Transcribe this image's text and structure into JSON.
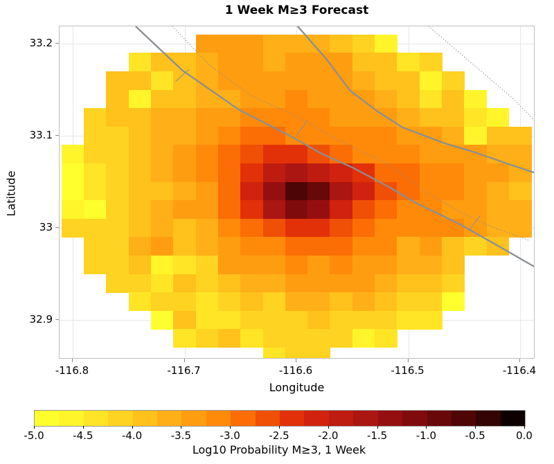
{
  "title": "1 Week M≥3 Forecast",
  "axes": {
    "xlabel": "Longitude",
    "ylabel": "Latitude",
    "xticks": {
      "labels": [
        "-116.8",
        "-116.7",
        "-116.6",
        "-116.5",
        "-116.4"
      ],
      "values": [
        -116.8,
        -116.7,
        -116.6,
        -116.5,
        -116.4
      ]
    },
    "yticks": {
      "labels": [
        "33.2",
        "33.1",
        "33",
        "32.9"
      ],
      "values": [
        33.2,
        33.1,
        33.0,
        32.9
      ]
    }
  },
  "colorbar": {
    "label": "Log10 Probability M≥3, 1 Week",
    "tick_labels": [
      "-5.0",
      "-4.5",
      "-4.0",
      "-3.5",
      "-3.0",
      "-2.5",
      "-2.0",
      "-1.5",
      "-1.0",
      "-0.5",
      "0.0"
    ],
    "vmin": -5.0,
    "vmax": 0.0,
    "n_blocks": 20,
    "palette": [
      "#FFFF2E",
      "#FFF52A",
      "#FFE526",
      "#FFD321",
      "#FFC11C",
      "#FFAF17",
      "#FF9D11",
      "#FF8A0A",
      "#FB6D05",
      "#F04F06",
      "#E23109",
      "#D0220E",
      "#BE1B11",
      "#AB1512",
      "#960F10",
      "#800B0D",
      "#680809",
      "#4E0506",
      "#340303",
      "#0E0001"
    ]
  },
  "fault_line_color": "#8a8f94",
  "chart_data": {
    "type": "heatmap",
    "title": "1 Week M≥3 Forecast",
    "xlabel": "Longitude",
    "ylabel": "Latitude",
    "value_label": "Log10 Probability M≥3, 1 Week",
    "xlim": [
      -116.815,
      -116.385
    ],
    "ylim": [
      32.857,
      33.219
    ],
    "cell_size_deg": 0.02,
    "x_lon_centers": [
      -116.8,
      -116.78,
      -116.76,
      -116.74,
      -116.72,
      -116.7,
      -116.68,
      -116.66,
      -116.64,
      -116.62,
      -116.6,
      -116.58,
      -116.56,
      -116.54,
      -116.52,
      -116.5,
      -116.48,
      -116.46,
      -116.44,
      -116.42,
      -116.4
    ],
    "y_lat_centers": [
      33.2,
      33.18,
      33.16,
      33.14,
      33.12,
      33.1,
      33.08,
      33.06,
      33.04,
      33.02,
      33.0,
      32.98,
      32.96,
      32.94,
      32.92,
      32.9,
      32.88,
      32.86
    ],
    "values": [
      [
        null,
        null,
        null,
        null,
        null,
        null,
        -3.38,
        -3.38,
        -3.38,
        -3.63,
        -3.63,
        -3.63,
        -3.88,
        -4.13,
        -4.63,
        null,
        null,
        null,
        null,
        null,
        null
      ],
      [
        null,
        null,
        null,
        -4.38,
        -3.88,
        -3.88,
        -3.63,
        -3.38,
        -3.38,
        -3.63,
        -3.38,
        -3.38,
        -3.38,
        -3.88,
        -3.88,
        -4.38,
        -4.13,
        null,
        null,
        null,
        null
      ],
      [
        null,
        null,
        -3.88,
        -3.88,
        -4.38,
        -3.88,
        -3.63,
        -3.38,
        -3.38,
        -3.38,
        -3.38,
        -3.38,
        -3.38,
        -3.63,
        -3.88,
        -3.88,
        -4.63,
        -4.13,
        null,
        null,
        null
      ],
      [
        null,
        null,
        -3.88,
        -4.63,
        -3.88,
        -3.88,
        -3.63,
        -3.63,
        -3.38,
        -3.38,
        -3.13,
        -3.38,
        -3.38,
        -3.38,
        -3.63,
        -3.88,
        -4.38,
        -3.88,
        -4.63,
        null,
        null
      ],
      [
        null,
        -4.13,
        -3.88,
        -3.88,
        -3.63,
        -3.63,
        -3.38,
        -3.38,
        -3.13,
        -3.13,
        -3.13,
        -3.13,
        -3.38,
        -3.38,
        -3.38,
        -3.63,
        -3.88,
        -3.88,
        -4.38,
        -4.63,
        null
      ],
      [
        null,
        -4.13,
        -4.13,
        -3.88,
        -3.63,
        -3.63,
        -3.38,
        -3.13,
        -2.88,
        -2.88,
        -3.13,
        -3.13,
        -3.13,
        -3.13,
        -3.13,
        -3.38,
        -3.38,
        -3.63,
        -4.63,
        -3.88,
        -3.88
      ],
      [
        -4.63,
        -4.13,
        -4.13,
        -3.88,
        -3.63,
        -3.38,
        -3.13,
        -2.88,
        -2.63,
        -2.38,
        -2.38,
        -2.63,
        -2.88,
        -3.13,
        -3.13,
        -3.13,
        -3.38,
        -3.38,
        -3.38,
        -3.63,
        -3.63
      ],
      [
        -4.88,
        -4.38,
        -4.13,
        -3.88,
        -3.63,
        -3.38,
        -3.13,
        -2.88,
        -2.38,
        -1.88,
        -1.63,
        -1.88,
        -2.13,
        -2.38,
        -2.88,
        -2.88,
        -3.13,
        -3.13,
        -3.38,
        -3.38,
        -3.63
      ],
      [
        -4.88,
        -4.38,
        -4.13,
        -3.88,
        -3.88,
        -3.63,
        -3.38,
        -2.88,
        -2.13,
        -1.38,
        -0.63,
        -0.88,
        -1.63,
        -2.13,
        -2.63,
        -2.88,
        -3.13,
        -3.13,
        -3.38,
        -3.63,
        -3.88
      ],
      [
        -4.63,
        -4.88,
        -4.13,
        -3.88,
        -3.63,
        -3.38,
        -3.38,
        -2.88,
        -2.38,
        -1.63,
        -1.13,
        -1.38,
        -2.13,
        -2.63,
        -2.88,
        -3.13,
        -3.13,
        -3.38,
        -3.38,
        -3.63,
        -3.63
      ],
      [
        -4.13,
        -4.13,
        -4.13,
        -3.88,
        -3.63,
        -3.88,
        -3.63,
        -3.13,
        -2.88,
        -2.63,
        -2.38,
        -2.38,
        -2.63,
        -2.88,
        -3.13,
        -3.13,
        -3.13,
        -3.13,
        -3.38,
        -3.63,
        -3.63
      ],
      [
        null,
        -4.13,
        -4.13,
        -3.63,
        -3.38,
        -3.88,
        -3.63,
        -3.38,
        -3.13,
        -3.13,
        -2.88,
        -2.88,
        -2.88,
        -3.13,
        -3.13,
        -3.63,
        -3.38,
        -3.88,
        -4.13,
        -3.88,
        null
      ],
      [
        null,
        -4.13,
        -4.13,
        -3.88,
        -4.63,
        -4.38,
        -4.13,
        -3.38,
        -3.38,
        -3.38,
        -3.13,
        -3.38,
        -3.13,
        -3.38,
        -3.38,
        -3.63,
        -3.63,
        -3.88,
        null,
        null,
        null
      ],
      [
        null,
        null,
        -4.13,
        -4.13,
        -4.38,
        -3.88,
        -4.13,
        -3.88,
        -3.63,
        -3.63,
        -3.38,
        -3.38,
        -3.38,
        -3.38,
        -3.63,
        -3.88,
        -3.88,
        -4.13,
        null,
        null,
        null
      ],
      [
        null,
        null,
        null,
        -4.38,
        -4.13,
        -4.13,
        -4.38,
        -4.13,
        -3.88,
        -4.13,
        -3.63,
        -3.63,
        -3.88,
        -3.63,
        -3.88,
        -4.13,
        -4.13,
        -4.88,
        null,
        null,
        null
      ],
      [
        null,
        null,
        null,
        null,
        -4.88,
        -3.88,
        -4.38,
        -4.38,
        -4.13,
        -4.13,
        -4.13,
        -3.88,
        -4.13,
        -4.13,
        -4.13,
        -4.38,
        -4.38,
        null,
        null,
        null,
        null
      ],
      [
        null,
        null,
        null,
        null,
        null,
        -4.38,
        -4.13,
        -3.88,
        -4.38,
        -4.13,
        -4.13,
        -4.13,
        -4.13,
        -4.63,
        -4.38,
        null,
        null,
        null,
        null,
        null,
        null
      ],
      [
        null,
        null,
        null,
        null,
        null,
        null,
        null,
        null,
        null,
        -4.38,
        -4.13,
        -4.13,
        null,
        null,
        null,
        null,
        null,
        null,
        null,
        null,
        null
      ]
    ],
    "faults": {
      "solid_lines": [
        [
          [
            -116.7437,
            33.2188
          ],
          [
            -116.702,
            33.171
          ],
          [
            -116.651,
            33.128
          ],
          [
            -116.609,
            33.102
          ],
          [
            -116.578,
            33.081
          ],
          [
            -116.549,
            33.065
          ],
          [
            -116.518,
            33.045
          ],
          [
            -116.493,
            33.027
          ],
          [
            -116.454,
            33.004
          ],
          [
            -116.419,
            32.98
          ],
          [
            -116.386,
            32.957
          ]
        ],
        [
          [
            -116.599,
            33.219
          ],
          [
            -116.573,
            33.183
          ],
          [
            -116.552,
            33.149
          ],
          [
            -116.527,
            33.126
          ],
          [
            -116.505,
            33.109
          ],
          [
            -116.468,
            33.092
          ],
          [
            -116.443,
            33.083
          ],
          [
            -116.412,
            33.07
          ],
          [
            -116.385,
            33.059
          ]
        ]
      ],
      "dotted_lines": [
        [
          [
            -116.711,
            33.219
          ],
          [
            -116.677,
            33.176
          ],
          [
            -116.641,
            33.144
          ],
          [
            -116.598,
            33.12
          ],
          [
            -116.57,
            33.1
          ],
          [
            -116.547,
            33.086
          ],
          [
            -116.518,
            33.069
          ],
          [
            -116.482,
            33.037
          ],
          [
            -116.453,
            33.017
          ],
          [
            -116.425,
            33.001
          ],
          [
            -116.391,
            32.986
          ]
        ],
        [
          [
            -116.482,
            33.219
          ],
          [
            -116.456,
            33.192
          ],
          [
            -116.431,
            33.166
          ],
          [
            -116.406,
            33.14
          ],
          [
            -116.385,
            33.114
          ]
        ]
      ],
      "connector_segments": [
        [
          [
            -116.708,
            33.159
          ],
          [
            -116.696,
            33.172
          ]
        ],
        [
          [
            -116.6,
            33.1
          ],
          [
            -116.59,
            33.117
          ]
        ],
        [
          [
            -116.446,
            32.997
          ],
          [
            -116.436,
            33.013
          ]
        ]
      ]
    }
  }
}
